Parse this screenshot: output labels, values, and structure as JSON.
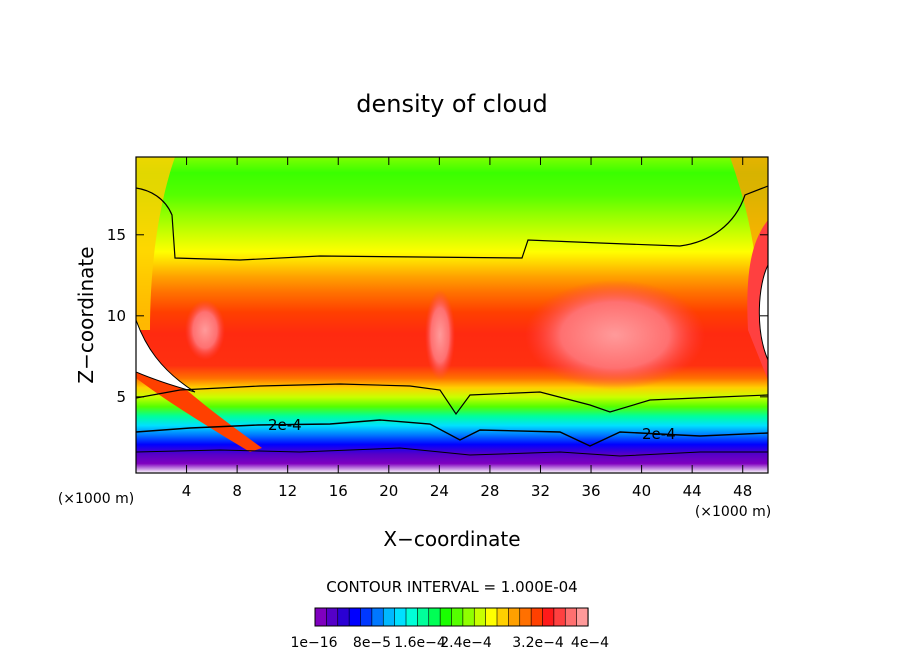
{
  "chart_data": {
    "type": "heatmap",
    "title": "density of cloud",
    "xlabel": "X−coordinate",
    "ylabel": "Z−coordinate",
    "x_unit": "(×1000 m)",
    "y_unit": "(×1000 m)",
    "xlim": [
      0,
      50
    ],
    "ylim": [
      0.3,
      19.8
    ],
    "x_ticks": [
      "4",
      "8",
      "12",
      "16",
      "20",
      "24",
      "28",
      "32",
      "36",
      "40",
      "44",
      "48"
    ],
    "y_ticks": [
      "5",
      "10",
      "15"
    ],
    "contour_interval": "CONTOUR INTERVAL = 1.000E-04",
    "contour_labels": [
      "2e-4",
      "2e-4"
    ],
    "colorbar_labels": [
      "1e−16",
      "8e−5",
      "1.6e−4",
      "2.4e−4",
      "3.2e−4",
      "4e−4"
    ],
    "colorbar_colors": [
      "#7f00bf",
      "#5500c8",
      "#2a00d4",
      "#0000ff",
      "#0038ff",
      "#0078ff",
      "#00b8ff",
      "#00e0ff",
      "#00ffd8",
      "#00ff9a",
      "#00ff55",
      "#1aff00",
      "#55ff00",
      "#90ff00",
      "#c8ff00",
      "#ffff00",
      "#ffd000",
      "#ffa000",
      "#ff7000",
      "#ff4000",
      "#ff1a1a",
      "#ff4040",
      "#ff7070",
      "#ff9a9a"
    ]
  }
}
